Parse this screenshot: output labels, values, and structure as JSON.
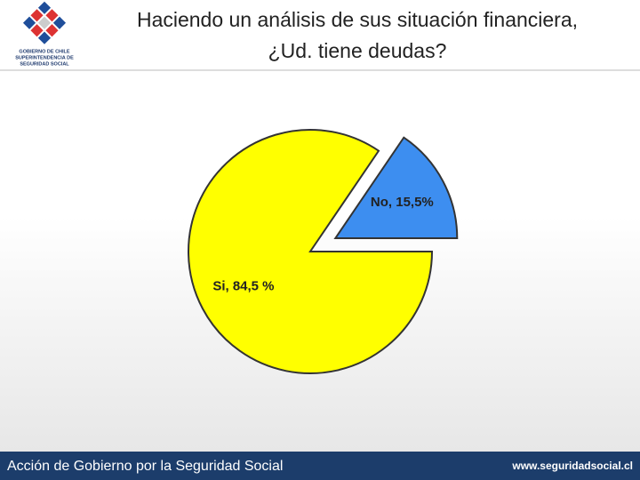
{
  "header": {
    "title_lines": [
      "Haciendo un análisis de sus situación financiera,",
      "¿Ud. tiene deudas?"
    ],
    "logo_lines": [
      "GOBIERNO DE CHILE",
      "SUPERINTENDENCIA DE",
      "SEGURIDAD SOCIAL"
    ]
  },
  "chart_data": {
    "type": "pie",
    "values": [
      84.5,
      15.5
    ],
    "value_labels": [
      "Si, 84,5 %",
      "No, 15,5%"
    ],
    "colors": [
      "#ffff00",
      "#3d8ef0"
    ],
    "exploded": [
      false,
      true
    ]
  },
  "footer": {
    "left": "Acción de Gobierno por la Seguridad Social",
    "right": "www.seguridadsocial.cl"
  }
}
